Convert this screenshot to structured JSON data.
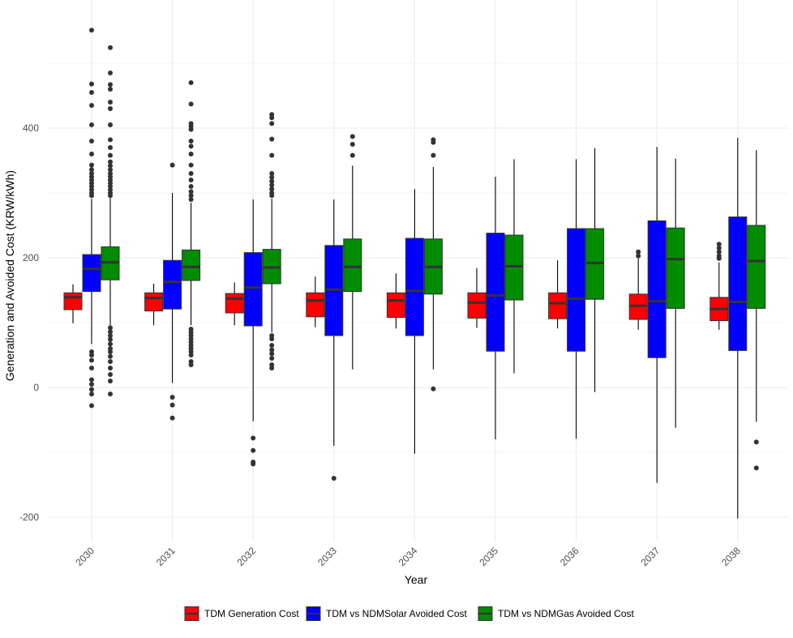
{
  "chart_data": {
    "type": "boxplot",
    "title": "",
    "xlabel": "Year",
    "ylabel": "Generation and Avoided Cost (KRW/kWh)",
    "ylim": [
      -250,
      560
    ],
    "y_ticks": [
      -200,
      0,
      200,
      400
    ],
    "y_tick_labels": [
      "-200",
      "0",
      "200",
      "400"
    ],
    "categories": [
      "2030",
      "2031",
      "2032",
      "2033",
      "2034",
      "2035",
      "2036",
      "2037",
      "2038"
    ],
    "legend_position": "bottom",
    "series": [
      {
        "name": "TDM Generation Cost",
        "color": "#ff0000",
        "boxes": [
          {
            "min": 99,
            "q1": 120,
            "median": 139,
            "q3": 146,
            "max": 159,
            "outliers": []
          },
          {
            "min": 96,
            "q1": 118,
            "median": 138,
            "q3": 146,
            "max": 160,
            "outliers": []
          },
          {
            "min": 96,
            "q1": 115,
            "median": 137,
            "q3": 145,
            "max": 162,
            "outliers": []
          },
          {
            "min": 93,
            "q1": 109,
            "median": 134,
            "q3": 146,
            "max": 171,
            "outliers": []
          },
          {
            "min": 91,
            "q1": 108,
            "median": 134,
            "q3": 146,
            "max": 176,
            "outliers": []
          },
          {
            "min": 92,
            "q1": 107,
            "median": 131,
            "q3": 146,
            "max": 184,
            "outliers": []
          },
          {
            "min": 91,
            "q1": 106,
            "median": 130,
            "q3": 146,
            "max": 196,
            "outliers": []
          },
          {
            "min": 89,
            "q1": 105,
            "median": 126,
            "q3": 144,
            "max": 199,
            "outliers": [
              203,
              209
            ]
          },
          {
            "min": 89,
            "q1": 103,
            "median": 121,
            "q3": 139,
            "max": 193,
            "outliers": [
              199,
              203,
              209,
              215,
              221
            ]
          }
        ]
      },
      {
        "name": "TDM vs NDMSolar Avoided Cost",
        "color": "#0000ff",
        "boxes": [
          {
            "min": 67,
            "q1": 148,
            "median": 183,
            "q3": 205,
            "max": 291,
            "outliers": [
              -28,
              -10,
              -3,
              5,
              12,
              30,
              42,
              50,
              55,
              296,
              300,
              305,
              310,
              315,
              320,
              325,
              330,
              336,
              343,
              360,
              380,
              405,
              435,
              455,
              468,
              551
            ]
          },
          {
            "min": 7,
            "q1": 121,
            "median": 163,
            "q3": 196,
            "max": 300,
            "outliers": [
              -47,
              -27,
              -15,
              343
            ]
          },
          {
            "min": -52,
            "q1": 95,
            "median": 154,
            "q3": 208,
            "max": 290,
            "outliers": [
              -118,
              -115,
              -97,
              -78
            ]
          },
          {
            "min": -90,
            "q1": 80,
            "median": 151,
            "q3": 219,
            "max": 290,
            "outliers": [
              -140
            ]
          },
          {
            "min": -102,
            "q1": 80,
            "median": 149,
            "q3": 230,
            "max": 306,
            "outliers": []
          },
          {
            "min": -80,
            "q1": 56,
            "median": 142,
            "q3": 238,
            "max": 325,
            "outliers": []
          },
          {
            "min": -79,
            "q1": 56,
            "median": 137,
            "q3": 245,
            "max": 352,
            "outliers": []
          },
          {
            "min": -147,
            "q1": 46,
            "median": 133,
            "q3": 257,
            "max": 371,
            "outliers": []
          },
          {
            "min": -202,
            "q1": 57,
            "median": 132,
            "q3": 263,
            "max": 385,
            "outliers": []
          }
        ]
      },
      {
        "name": "TDM vs NDMGas Avoided Cost",
        "color": "#008b00",
        "boxes": [
          {
            "min": 92,
            "q1": 166,
            "median": 193,
            "q3": 217,
            "max": 292,
            "outliers": [
              -10,
              10,
              20,
              30,
              40,
              48,
              55,
              60,
              67,
              74,
              80,
              86,
              92,
              296,
              300,
              305,
              310,
              315,
              320,
              325,
              330,
              336,
              342,
              348,
              358,
              370,
              382,
              405,
              430,
              440,
              460,
              467,
              485,
              524
            ]
          },
          {
            "min": 96,
            "q1": 165,
            "median": 186,
            "q3": 212,
            "max": 285,
            "outliers": [
              35,
              40,
              50,
              55,
              60,
              65,
              70,
              75,
              80,
              85,
              90,
              290,
              296,
              302,
              310,
              320,
              330,
              343,
              360,
              372,
              380,
              398,
              403,
              407,
              437,
              470
            ]
          },
          {
            "min": 85,
            "q1": 160,
            "median": 185,
            "q3": 213,
            "max": 291,
            "outliers": [
              30,
              35,
              45,
              52,
              58,
              65,
              75,
              80,
              296,
              300,
              306,
              312,
              318,
              324,
              330,
              358,
              383,
              407,
              416,
              421
            ]
          },
          {
            "min": 28,
            "q1": 148,
            "median": 186,
            "q3": 229,
            "max": 342,
            "outliers": [
              358,
              375,
              387
            ]
          },
          {
            "min": 28,
            "q1": 144,
            "median": 186,
            "q3": 229,
            "max": 340,
            "outliers": [
              -2,
              358,
              378,
              382
            ]
          },
          {
            "min": 22,
            "q1": 135,
            "median": 187,
            "q3": 235,
            "max": 352,
            "outliers": []
          },
          {
            "min": -7,
            "q1": 136,
            "median": 192,
            "q3": 245,
            "max": 369,
            "outliers": []
          },
          {
            "min": -62,
            "q1": 122,
            "median": 198,
            "q3": 246,
            "max": 353,
            "outliers": []
          },
          {
            "min": -53,
            "q1": 122,
            "median": 195,
            "q3": 250,
            "max": 366,
            "outliers": [
              -124,
              -84
            ]
          }
        ]
      }
    ]
  }
}
